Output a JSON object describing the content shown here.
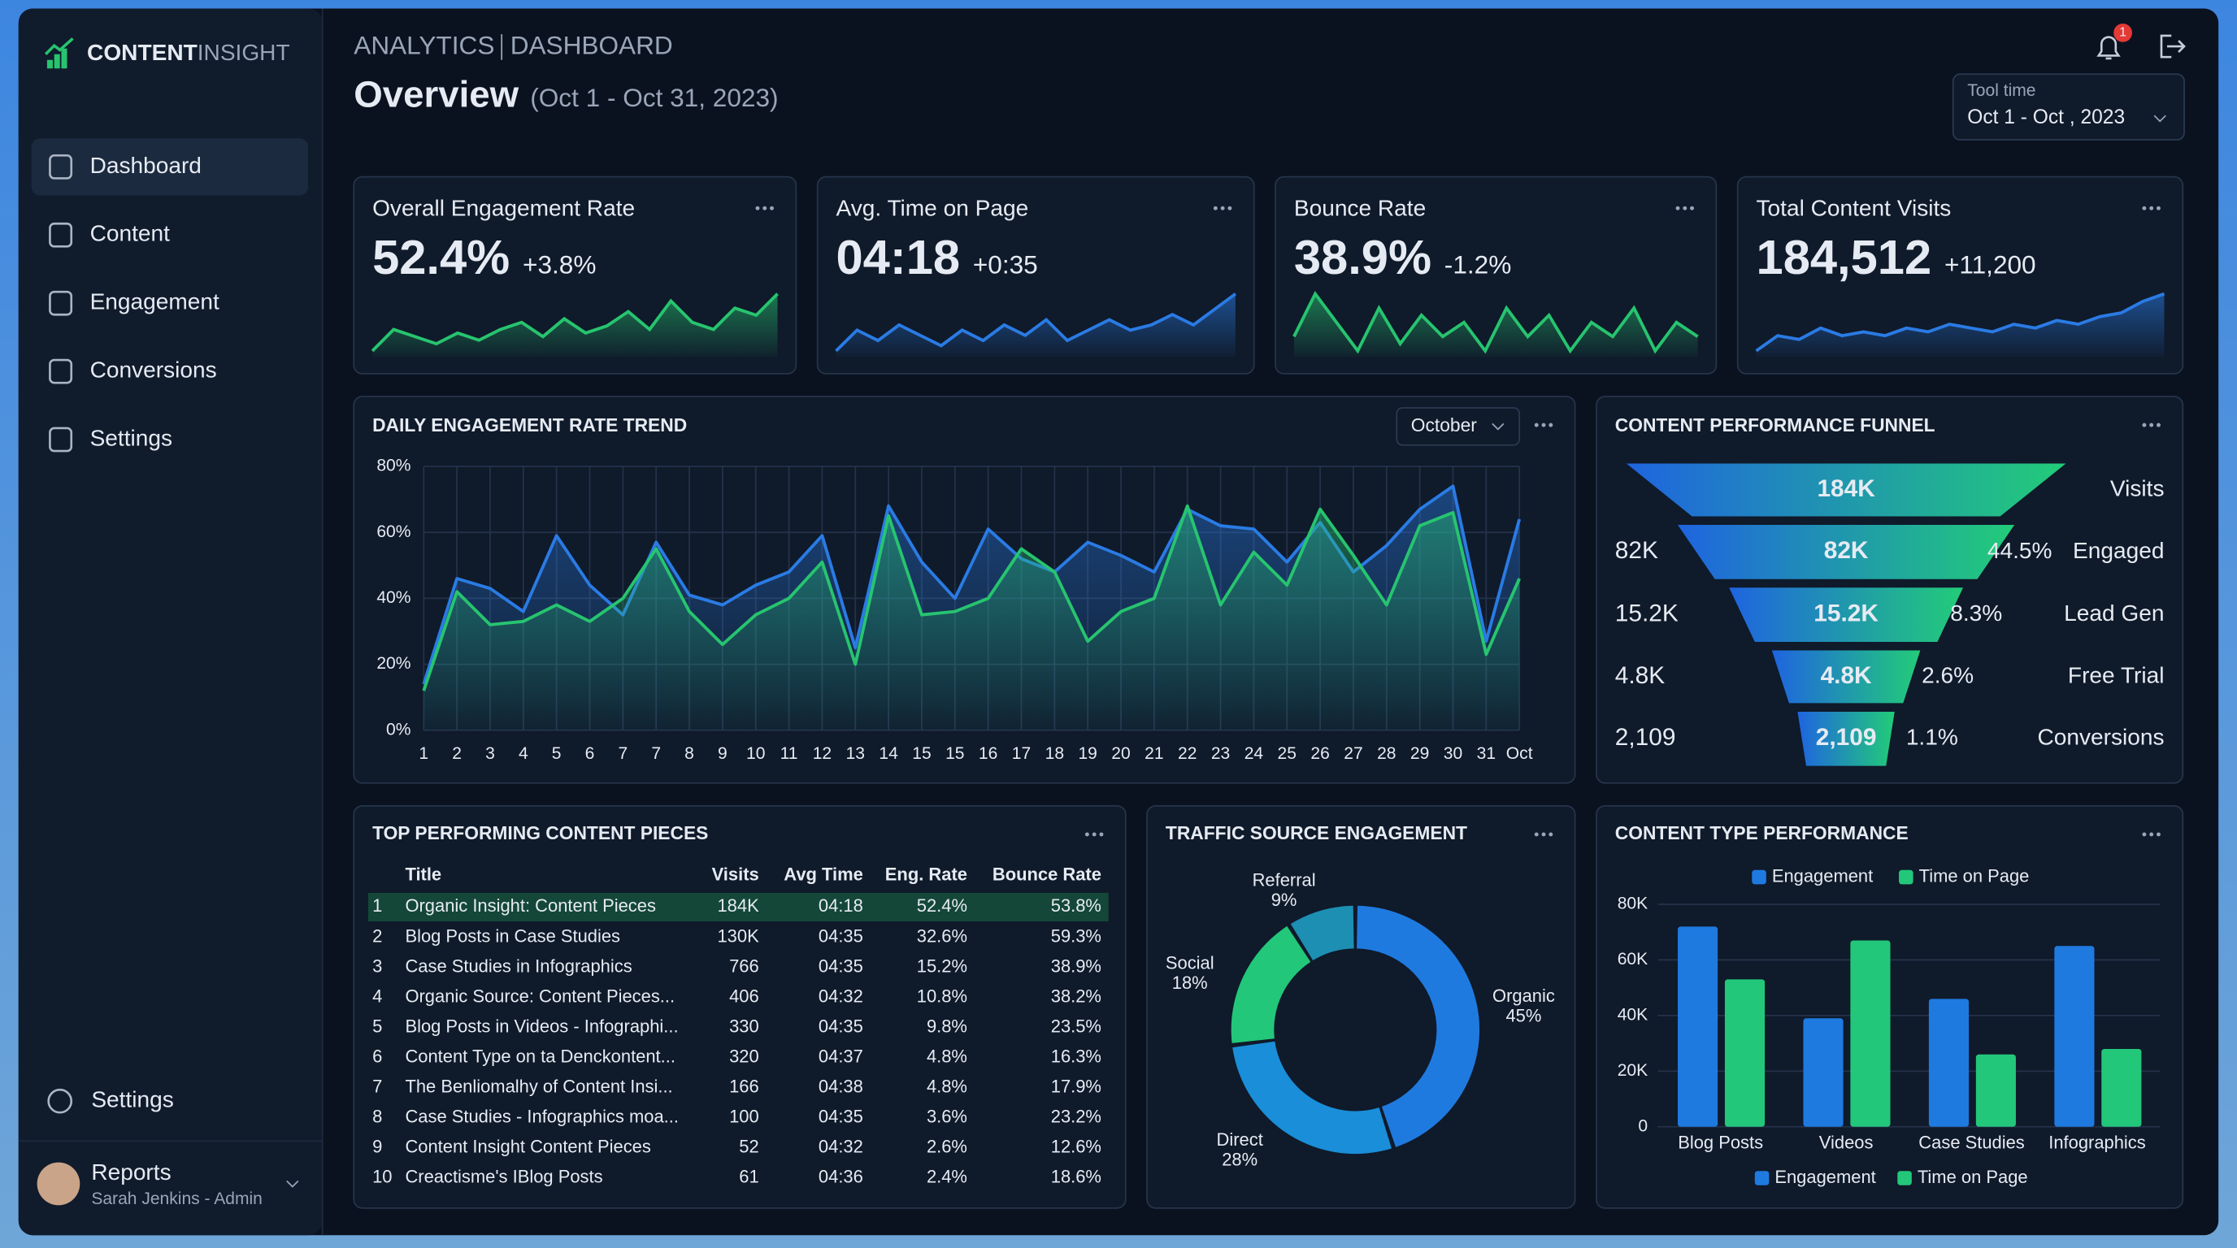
{
  "sidebar": {
    "brand_a": "CONTENT",
    "brand_b": "INSIGHT",
    "nav": [
      "Dashboard",
      "Content",
      "Engagement",
      "Conversions",
      "Settings"
    ],
    "footer_nav": "Settings",
    "user_menu": "Reports",
    "user": "Sarah Jenkins - Admin"
  },
  "header": {
    "section": "ANALYTICS",
    "page": "DASHBOARD",
    "title": "Overview",
    "period": "(Oct 1 - Oct 31, 2023)",
    "notifications": "1",
    "date_picker": {
      "label": "Tool time",
      "value": "Oct 1 - Oct  , 2023"
    }
  },
  "kpis": [
    {
      "title": "Overall Engagement Rate",
      "value": "52.4%",
      "delta": "+3.8%",
      "color": "#27c46f",
      "sparkline": [
        4,
        10,
        8,
        6,
        9,
        7,
        10,
        12,
        8,
        13,
        9,
        11,
        15,
        10,
        18,
        12,
        10,
        16,
        14,
        20
      ]
    },
    {
      "title": "Avg. Time on Page",
      "value": "04:18",
      "delta": "+0:35",
      "color": "#2a7be4",
      "sparkline": [
        8,
        12,
        10,
        13,
        11,
        9,
        12,
        10,
        13,
        11,
        14,
        10,
        12,
        14,
        12,
        13,
        15,
        13,
        16,
        19
      ]
    },
    {
      "title": "Bounce Rate",
      "value": "38.9%",
      "delta": "-1.2%",
      "color": "#27c46f",
      "sparkline": [
        12,
        18,
        14,
        10,
        16,
        11,
        15,
        12,
        14,
        10,
        16,
        12,
        15,
        10,
        14,
        12,
        16,
        10,
        14,
        12
      ]
    },
    {
      "title": "Total Content Visits",
      "value": "184,512",
      "delta": "+11,200",
      "color": "#2a7be4",
      "sparkline": [
        4,
        8,
        7,
        10,
        8,
        9,
        8,
        10,
        9,
        11,
        10,
        9,
        11,
        10,
        12,
        11,
        13,
        14,
        17,
        19
      ]
    }
  ],
  "trend": {
    "type": "line",
    "title": "DAILY ENGAGEMENT RATE TREND",
    "filter": "October",
    "categories": [
      "1",
      "2",
      "3",
      "4",
      "5",
      "6",
      "7",
      "7",
      "8",
      "9",
      "10",
      "11",
      "12",
      "13",
      "14",
      "15",
      "15",
      "16",
      "17",
      "18",
      "19",
      "20",
      "21",
      "22",
      "23",
      "24",
      "25",
      "26",
      "27",
      "28",
      "29",
      "30",
      "31",
      "Oct"
    ],
    "series": [
      {
        "color": "#2a7be4",
        "values": [
          14,
          46,
          43,
          36,
          59,
          44,
          35,
          57,
          41,
          38,
          44,
          48,
          59,
          25,
          68,
          51,
          40,
          61,
          52,
          48,
          57,
          53,
          48,
          67,
          62,
          61,
          51,
          63,
          48,
          56,
          67,
          74,
          27,
          64
        ]
      },
      {
        "color": "#27c46f",
        "values": [
          12,
          42,
          32,
          33,
          38,
          33,
          40,
          55,
          36,
          26,
          35,
          40,
          51,
          20,
          65,
          35,
          36,
          40,
          55,
          48,
          27,
          36,
          40,
          68,
          38,
          54,
          44,
          67,
          53,
          38,
          62,
          66,
          23,
          46
        ]
      }
    ],
    "ylim": [
      0,
      80
    ],
    "yticks": [
      {
        "value": 0,
        "label": "0%"
      },
      {
        "value": 20,
        "label": "20%"
      },
      {
        "value": 40,
        "label": "40%"
      },
      {
        "value": 60,
        "label": "60%"
      },
      {
        "value": 80,
        "label": "80%"
      }
    ],
    "grid": true
  },
  "funnel": {
    "title": "CONTENT PERFORMANCE FUNNEL",
    "stages": [
      {
        "name": "Visits",
        "value": "184K"
      },
      {
        "name": "Engaged",
        "value": "82K",
        "side": "82K",
        "rate": "44.5%"
      },
      {
        "name": "Lead Gen",
        "value": "15.2K",
        "side": "15.2K",
        "rate": "8.3%"
      },
      {
        "name": "Free Trial",
        "value": "4.8K",
        "side": "4.8K",
        "rate": "2.6%"
      },
      {
        "name": "Conversions",
        "value": "2,109",
        "side": "2,109",
        "rate": "1.1%"
      }
    ]
  },
  "table": {
    "title": "TOP PERFORMING CONTENT PIECES",
    "columns": [
      "Title",
      "Visits",
      "Avg Time",
      "Eng. Rate",
      "Bounce Rate"
    ],
    "rows": [
      [
        "1",
        "Organic Insight: Content Pieces",
        "184K",
        "04:18",
        "52.4%",
        "53.8%"
      ],
      [
        "2",
        "Blog Posts in Case Studies",
        "130K",
        "04:35",
        "32.6%",
        "59.3%"
      ],
      [
        "3",
        "Case Studies in Infographics",
        "766",
        "04:35",
        "15.2%",
        "38.9%"
      ],
      [
        "4",
        "Organic Source: Content Pieces...",
        "406",
        "04:32",
        "10.8%",
        "38.2%"
      ],
      [
        "5",
        "Blog Posts in Videos - Infographi...",
        "330",
        "04:35",
        "9.8%",
        "23.5%"
      ],
      [
        "6",
        "Content Type on ta Denckontent...",
        "320",
        "04:37",
        "4.8%",
        "16.3%"
      ],
      [
        "7",
        "The Benliomalhy of Content Insi...",
        "166",
        "04:38",
        "4.8%",
        "17.9%"
      ],
      [
        "8",
        "Case Studies - Infographics moa...",
        "100",
        "04:35",
        "3.6%",
        "23.2%"
      ],
      [
        "9",
        "Content Insight Content Pieces",
        "52",
        "04:32",
        "2.6%",
        "12.6%"
      ],
      [
        "10",
        "Creactisme's IBlog Posts",
        "61",
        "04:36",
        "2.4%",
        "18.6%"
      ]
    ]
  },
  "traffic": {
    "type": "pie",
    "title": "TRAFFIC SOURCE ENGAGEMENT",
    "categories": [
      "Organic",
      "Direct",
      "Social",
      "Referral"
    ],
    "values": [
      45,
      28,
      18,
      9
    ],
    "value_labels": [
      "45%",
      "28%",
      "18%",
      "9%"
    ],
    "colors": [
      "#1f7ae0",
      "#1a8ed8",
      "#23c77a",
      "#1d8fb3"
    ]
  },
  "content_types": {
    "type": "bar",
    "title": "CONTENT TYPE PERFORMANCE",
    "categories": [
      "Blog Posts",
      "Videos",
      "Case Studies",
      "Infographics"
    ],
    "series": [
      {
        "name": "Engagement",
        "color": "#1f7ae0",
        "values": [
          72000,
          39000,
          46000,
          65000
        ]
      },
      {
        "name": "Time on Page",
        "color": "#23c77a",
        "values": [
          53000,
          67000,
          26000,
          28000
        ]
      }
    ],
    "ylim": [
      0,
      80000
    ],
    "yticks": [
      0,
      {
        "value": 20000,
        "label": "20K"
      },
      {
        "value": 40000,
        "label": "40K"
      },
      {
        "value": 60000,
        "label": "60K"
      },
      {
        "value": 80000,
        "label": "80K"
      }
    ],
    "grid": true
  }
}
